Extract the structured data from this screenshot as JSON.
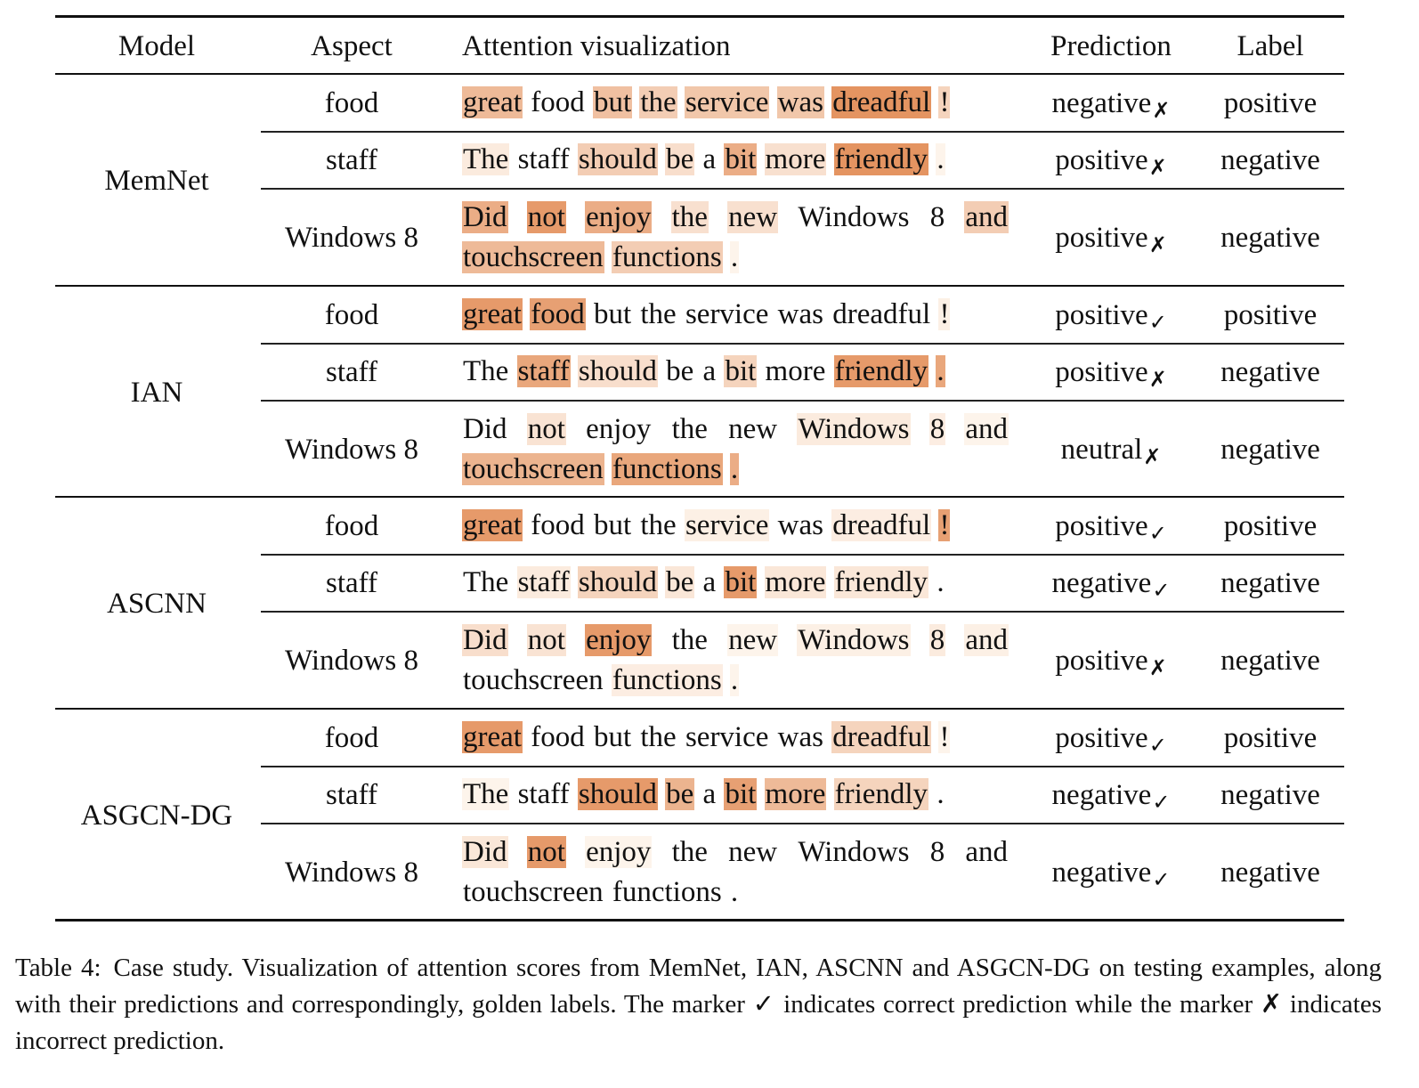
{
  "table": {
    "headers": {
      "model": "Model",
      "aspect": "Aspect",
      "attention": "Attention visualization",
      "prediction": "Prediction",
      "label": "Label"
    },
    "groups": [
      {
        "model": "MemNet",
        "rows": [
          {
            "aspect": "food",
            "prediction": "negative",
            "mark": "✗",
            "label": "positive",
            "tokens": [
              [
                "great",
                0.5
              ],
              [
                "food",
                0.0
              ],
              [
                "but",
                0.45
              ],
              [
                "the",
                0.35
              ],
              [
                "service",
                0.4
              ],
              [
                "was",
                0.4
              ],
              [
                "dreadful",
                0.8
              ],
              [
                "!",
                0.3
              ]
            ]
          },
          {
            "aspect": "staff",
            "prediction": "positive",
            "mark": "✗",
            "label": "negative",
            "tokens": [
              [
                "The",
                0.12
              ],
              [
                "staff",
                0.0
              ],
              [
                "should",
                0.35
              ],
              [
                "be",
                0.22
              ],
              [
                "a",
                0.0
              ],
              [
                "bit",
                0.6
              ],
              [
                "more",
                0.2
              ],
              [
                "friendly",
                0.8
              ],
              [
                ".",
                0.05
              ]
            ]
          },
          {
            "aspect": "Windows 8",
            "prediction": "positive",
            "mark": "✗",
            "label": "negative",
            "tokens": [
              [
                "Did",
                0.6
              ],
              [
                "not",
                0.75
              ],
              [
                "enjoy",
                0.6
              ],
              [
                "the",
                0.2
              ],
              [
                "new",
                0.2
              ],
              [
                "Windows",
                0.0
              ],
              [
                "8",
                0.0
              ],
              [
                "and",
                0.35
              ],
              [
                "touchscreen",
                0.5
              ],
              [
                "functions",
                0.35
              ],
              [
                ".",
                0.05
              ]
            ]
          }
        ]
      },
      {
        "model": "IAN",
        "rows": [
          {
            "aspect": "food",
            "prediction": "positive",
            "mark": "✓",
            "label": "positive",
            "tokens": [
              [
                "great",
                0.75
              ],
              [
                "food",
                0.7
              ],
              [
                "but",
                0.0
              ],
              [
                "the",
                0.0
              ],
              [
                "service",
                0.0
              ],
              [
                "was",
                0.0
              ],
              [
                "dreadful",
                0.0
              ],
              [
                "!",
                0.08
              ]
            ]
          },
          {
            "aspect": "staff",
            "prediction": "positive",
            "mark": "✗",
            "label": "negative",
            "tokens": [
              [
                "The",
                0.0
              ],
              [
                "staff",
                0.65
              ],
              [
                "should",
                0.22
              ],
              [
                "be",
                0.0
              ],
              [
                "a",
                0.0
              ],
              [
                "bit",
                0.3
              ],
              [
                "more",
                0.0
              ],
              [
                "friendly",
                0.75
              ],
              [
                ".",
                0.65
              ]
            ]
          },
          {
            "aspect": "Windows 8",
            "prediction": "neutral",
            "mark": "✗",
            "label": "negative",
            "tokens": [
              [
                "Did",
                0.0
              ],
              [
                "not",
                0.18
              ],
              [
                "enjoy",
                0.0
              ],
              [
                "the",
                0.0
              ],
              [
                "new",
                0.0
              ],
              [
                "Windows",
                0.12
              ],
              [
                "8",
                0.1
              ],
              [
                "and",
                0.05
              ],
              [
                "touchscreen",
                0.55
              ],
              [
                "functions",
                0.65
              ],
              [
                ".",
                0.6
              ]
            ]
          }
        ]
      },
      {
        "model": "ASCNN",
        "rows": [
          {
            "aspect": "food",
            "prediction": "positive",
            "mark": "✓",
            "label": "positive",
            "tokens": [
              [
                "great",
                0.75
              ],
              [
                "food",
                0.0
              ],
              [
                "but",
                0.0
              ],
              [
                "the",
                0.0
              ],
              [
                "service",
                0.08
              ],
              [
                "was",
                0.0
              ],
              [
                "dreadful",
                0.1
              ],
              [
                "!",
                0.7
              ]
            ]
          },
          {
            "aspect": "staff",
            "prediction": "negative",
            "mark": "✓",
            "label": "negative",
            "tokens": [
              [
                "The",
                0.0
              ],
              [
                "staff",
                0.12
              ],
              [
                "should",
                0.3
              ],
              [
                "be",
                0.15
              ],
              [
                "a",
                0.0
              ],
              [
                "bit",
                0.75
              ],
              [
                "more",
                0.15
              ],
              [
                "friendly",
                0.15
              ],
              [
                ".",
                0.0
              ]
            ]
          },
          {
            "aspect": "Windows 8",
            "prediction": "positive",
            "mark": "✗",
            "label": "negative",
            "tokens": [
              [
                "Did",
                0.22
              ],
              [
                "not",
                0.18
              ],
              [
                "enjoy",
                0.75
              ],
              [
                "the",
                0.0
              ],
              [
                "new",
                0.05
              ],
              [
                "Windows",
                0.08
              ],
              [
                "8",
                0.12
              ],
              [
                "and",
                0.08
              ],
              [
                "touchscreen",
                0.0
              ],
              [
                "functions",
                0.1
              ],
              [
                ".",
                0.05
              ]
            ]
          }
        ]
      },
      {
        "model": "ASGCN-DG",
        "rows": [
          {
            "aspect": "food",
            "prediction": "positive",
            "mark": "✓",
            "label": "positive",
            "tokens": [
              [
                "great",
                0.75
              ],
              [
                "food",
                0.0
              ],
              [
                "but",
                0.0
              ],
              [
                "the",
                0.0
              ],
              [
                "service",
                0.0
              ],
              [
                "was",
                0.0
              ],
              [
                "dreadful",
                0.3
              ],
              [
                "!",
                0.05
              ]
            ]
          },
          {
            "aspect": "staff",
            "prediction": "negative",
            "mark": "✓",
            "label": "negative",
            "tokens": [
              [
                "The",
                0.05
              ],
              [
                "staff",
                0.0
              ],
              [
                "should",
                0.75
              ],
              [
                "be",
                0.55
              ],
              [
                "a",
                0.0
              ],
              [
                "bit",
                0.7
              ],
              [
                "more",
                0.5
              ],
              [
                "friendly",
                0.3
              ],
              [
                ".",
                0.0
              ]
            ]
          },
          {
            "aspect": "Windows 8",
            "prediction": "negative",
            "mark": "✓",
            "label": "negative",
            "tokens": [
              [
                "Did",
                0.15
              ],
              [
                "not",
                0.75
              ],
              [
                "enjoy",
                0.05
              ],
              [
                "the",
                0.0
              ],
              [
                "new",
                0.0
              ],
              [
                "Windows",
                0.0
              ],
              [
                "8",
                0.0
              ],
              [
                "and",
                0.0
              ],
              [
                "touchscreen",
                0.0
              ],
              [
                "functions",
                0.0
              ],
              [
                ".",
                0.0
              ]
            ]
          }
        ]
      }
    ]
  },
  "caption": {
    "tag": "Table 4:",
    "text": "Case study. Visualization of attention scores from MemNet, IAN, ASCNN and ASGCN-DG on testing examples, along with their predictions and correspondingly, golden labels. The marker ✓ indicates correct prediction while the marker ✗ indicates incorrect prediction."
  },
  "colors": {
    "highlight_max": "#dd7a3c",
    "highlight_min": "#fffaf4"
  }
}
